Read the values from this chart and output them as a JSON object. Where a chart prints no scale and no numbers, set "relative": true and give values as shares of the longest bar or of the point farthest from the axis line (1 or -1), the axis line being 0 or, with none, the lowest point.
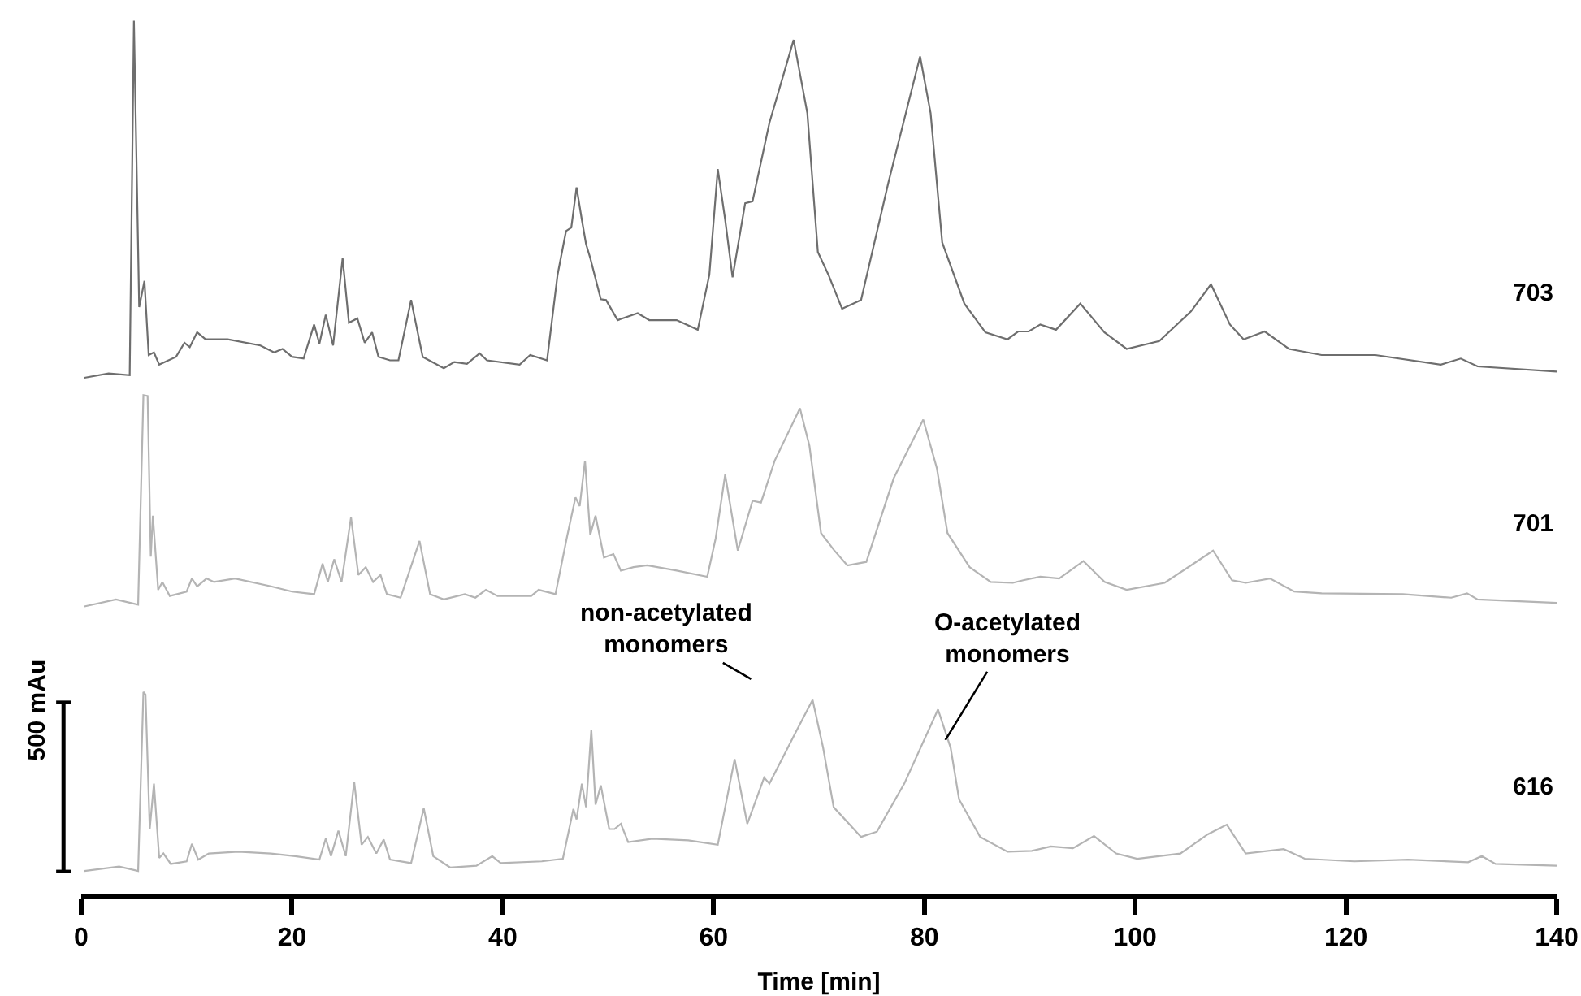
{
  "chart_data": {
    "type": "line",
    "relative": true,
    "xlabel": "Time [min]",
    "xlim": [
      0,
      140
    ],
    "xticks": [
      0,
      20,
      40,
      60,
      80,
      100,
      120,
      140
    ],
    "legend": false,
    "marker": "none",
    "line_style": "solid",
    "series": [
      {
        "name": "703",
        "color": "#6e6e6e",
        "x": [
          0.3,
          2.6,
          4.6,
          5.0,
          5.5,
          6.0,
          6.4,
          6.9,
          7.4,
          9.0,
          9.8,
          10.3,
          11.0,
          11.8,
          13.9,
          17.0,
          18.3,
          19.1,
          20.0,
          21.1,
          22.1,
          22.6,
          23.2,
          23.9,
          24.8,
          25.4,
          26.2,
          26.9,
          27.6,
          28.2,
          29.3,
          30.1,
          31.3,
          32.4,
          34.4,
          35.4,
          36.6,
          37.8,
          38.5,
          41.6,
          42.6,
          44.2,
          45.2,
          46.0,
          46.5,
          47.0,
          47.5,
          47.9,
          48.3,
          49.3,
          49.8,
          50.9,
          52.8,
          53.9,
          56.5,
          58.5,
          59.6,
          60.4,
          61.1,
          61.8,
          63.0,
          63.7,
          65.3,
          67.6,
          68.9,
          69.9,
          70.9,
          72.2,
          74.0,
          76.6,
          79.6,
          80.6,
          81.7,
          83.8,
          85.8,
          87.9,
          88.9,
          89.9,
          91.0,
          92.5,
          94.8,
          97.1,
          99.2,
          102.3,
          105.3,
          107.2,
          109.0,
          110.3,
          112.3,
          114.6,
          117.7,
          122.8,
          129.0,
          130.9,
          132.5,
          140.0
        ],
        "values": [
          0.591,
          0.596,
          0.594,
          1.0,
          0.672,
          0.702,
          0.617,
          0.62,
          0.606,
          0.615,
          0.631,
          0.626,
          0.643,
          0.635,
          0.635,
          0.628,
          0.62,
          0.624,
          0.615,
          0.613,
          0.652,
          0.63,
          0.663,
          0.628,
          0.728,
          0.654,
          0.659,
          0.631,
          0.643,
          0.615,
          0.611,
          0.611,
          0.68,
          0.615,
          0.602,
          0.609,
          0.607,
          0.619,
          0.611,
          0.606,
          0.617,
          0.611,
          0.709,
          0.759,
          0.763,
          0.809,
          0.772,
          0.744,
          0.728,
          0.681,
          0.68,
          0.657,
          0.665,
          0.657,
          0.657,
          0.646,
          0.709,
          0.83,
          0.772,
          0.706,
          0.791,
          0.793,
          0.883,
          0.978,
          0.894,
          0.735,
          0.709,
          0.67,
          0.68,
          0.815,
          0.959,
          0.894,
          0.746,
          0.676,
          0.643,
          0.635,
          0.644,
          0.644,
          0.652,
          0.646,
          0.676,
          0.643,
          0.624,
          0.633,
          0.667,
          0.698,
          0.652,
          0.635,
          0.644,
          0.624,
          0.617,
          0.617,
          0.606,
          0.613,
          0.604,
          0.598
        ]
      },
      {
        "name": "701",
        "color": "#b4b4b4",
        "x": [
          0.3,
          3.3,
          5.4,
          5.9,
          6.3,
          6.6,
          6.8,
          7.3,
          7.7,
          8.4,
          10.0,
          10.5,
          11.0,
          11.9,
          12.6,
          14.6,
          18.0,
          20.0,
          22.1,
          22.9,
          23.4,
          24.0,
          24.7,
          25.6,
          26.3,
          27.0,
          27.7,
          28.4,
          29.0,
          30.3,
          32.1,
          33.1,
          34.4,
          36.4,
          37.4,
          38.4,
          39.5,
          42.7,
          43.4,
          45.0,
          46.1,
          46.9,
          47.3,
          47.8,
          48.3,
          48.8,
          49.6,
          50.5,
          51.2,
          52.4,
          53.7,
          56.5,
          59.4,
          60.2,
          61.1,
          62.3,
          63.7,
          64.5,
          65.8,
          68.2,
          69.1,
          70.2,
          71.4,
          72.7,
          74.5,
          77.1,
          79.9,
          81.2,
          82.2,
          84.3,
          86.3,
          88.4,
          89.4,
          91.0,
          92.8,
          95.1,
          97.1,
          99.2,
          102.8,
          105.3,
          107.4,
          109.2,
          110.5,
          112.8,
          115.1,
          117.7,
          125.4,
          130.0,
          131.5,
          132.5,
          140.0
        ],
        "values": [
          0.329,
          0.337,
          0.331,
          0.571,
          0.57,
          0.386,
          0.433,
          0.348,
          0.357,
          0.341,
          0.346,
          0.361,
          0.352,
          0.361,
          0.357,
          0.361,
          0.352,
          0.346,
          0.343,
          0.378,
          0.357,
          0.383,
          0.357,
          0.431,
          0.365,
          0.374,
          0.357,
          0.365,
          0.343,
          0.339,
          0.404,
          0.343,
          0.337,
          0.343,
          0.339,
          0.348,
          0.341,
          0.341,
          0.348,
          0.343,
          0.409,
          0.454,
          0.444,
          0.496,
          0.411,
          0.433,
          0.385,
          0.389,
          0.37,
          0.374,
          0.376,
          0.37,
          0.363,
          0.407,
          0.48,
          0.393,
          0.45,
          0.448,
          0.496,
          0.556,
          0.513,
          0.413,
          0.394,
          0.376,
          0.38,
          0.476,
          0.543,
          0.487,
          0.413,
          0.374,
          0.357,
          0.356,
          0.359,
          0.363,
          0.361,
          0.381,
          0.357,
          0.348,
          0.356,
          0.376,
          0.393,
          0.359,
          0.356,
          0.361,
          0.346,
          0.344,
          0.343,
          0.339,
          0.344,
          0.337,
          0.333
        ]
      },
      {
        "name": "616",
        "color": "#b4b4b4",
        "x": [
          0.3,
          3.6,
          5.4,
          5.9,
          6.1,
          6.5,
          6.9,
          7.4,
          7.8,
          8.5,
          10.0,
          10.5,
          11.1,
          12.1,
          14.9,
          18.0,
          20.3,
          22.6,
          23.2,
          23.7,
          24.4,
          25.1,
          25.9,
          26.6,
          27.2,
          28.0,
          28.7,
          29.3,
          31.3,
          32.5,
          33.4,
          35.0,
          37.5,
          39.0,
          39.8,
          43.7,
          45.7,
          46.7,
          47.0,
          47.5,
          47.9,
          48.4,
          48.8,
          49.3,
          50.1,
          50.6,
          51.2,
          51.9,
          54.2,
          57.6,
          60.4,
          62.0,
          63.2,
          64.8,
          65.3,
          67.8,
          69.4,
          70.4,
          71.4,
          74.0,
          75.5,
          78.1,
          81.3,
          82.5,
          83.3,
          85.3,
          87.9,
          90.2,
          92.0,
          94.1,
          96.1,
          98.2,
          100.2,
          104.3,
          106.9,
          108.7,
          110.5,
          114.1,
          116.1,
          120.8,
          125.9,
          131.6,
          132.9,
          134.2,
          140.0
        ],
        "values": [
          0.026,
          0.031,
          0.026,
          0.231,
          0.228,
          0.074,
          0.126,
          0.041,
          0.046,
          0.034,
          0.037,
          0.057,
          0.039,
          0.046,
          0.048,
          0.046,
          0.043,
          0.039,
          0.063,
          0.043,
          0.072,
          0.043,
          0.128,
          0.056,
          0.065,
          0.046,
          0.062,
          0.039,
          0.035,
          0.098,
          0.043,
          0.03,
          0.032,
          0.043,
          0.035,
          0.037,
          0.04,
          0.097,
          0.085,
          0.126,
          0.099,
          0.188,
          0.102,
          0.124,
          0.074,
          0.074,
          0.08,
          0.059,
          0.063,
          0.061,
          0.056,
          0.154,
          0.08,
          0.133,
          0.126,
          0.185,
          0.222,
          0.167,
          0.099,
          0.065,
          0.071,
          0.126,
          0.211,
          0.167,
          0.108,
          0.065,
          0.048,
          0.049,
          0.054,
          0.052,
          0.066,
          0.046,
          0.04,
          0.046,
          0.068,
          0.079,
          0.046,
          0.051,
          0.04,
          0.037,
          0.039,
          0.036,
          0.043,
          0.034,
          0.032
        ]
      }
    ],
    "annotations": [
      "non-acetylated\nmonomers",
      {
        "text": "O-acetylated\nmonomers",
        "x": 82,
        "y": 0.176
      },
      "500 mAu"
    ]
  }
}
